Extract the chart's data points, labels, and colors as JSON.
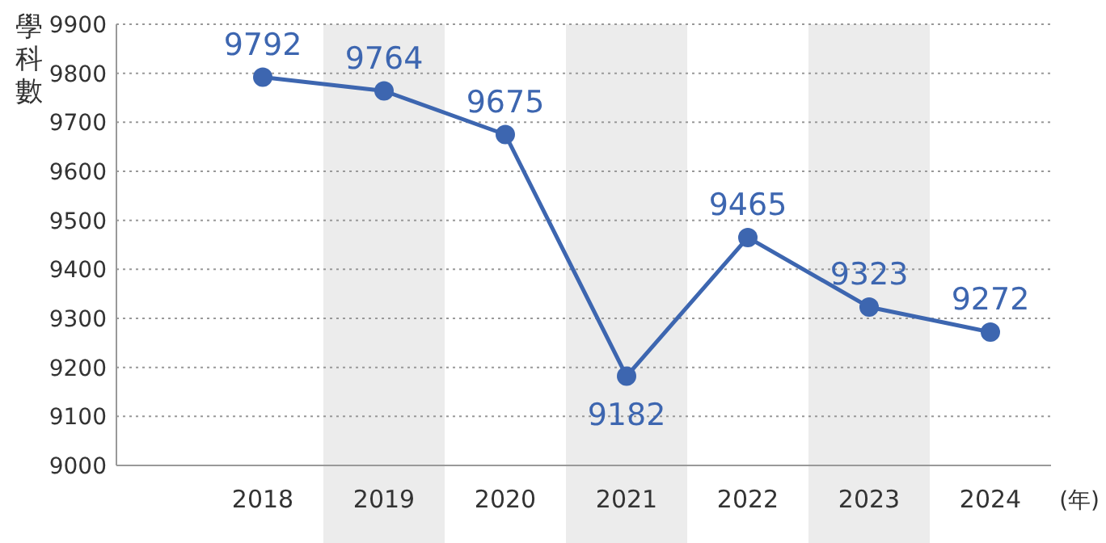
{
  "chart_data": {
    "type": "line",
    "ylabel": "學科數",
    "xlabel": "(年)",
    "categories": [
      "2018",
      "2019",
      "2020",
      "2021",
      "2022",
      "2023",
      "2024"
    ],
    "series": [
      {
        "color": "#3d66b0",
        "values": [
          9792,
          9764,
          9675,
          9182,
          9465,
          9323,
          9272
        ]
      }
    ],
    "ylim": [
      9000,
      9900
    ],
    "yticks": [
      9000,
      9100,
      9200,
      9300,
      9400,
      9500,
      9600,
      9700,
      9800,
      9900
    ],
    "grid": "y",
    "marker": "circle",
    "line_style": "solid",
    "data_labels": true,
    "bands": [
      {
        "axis": "x",
        "from": "2019",
        "to": "2019",
        "color": "#ececec"
      },
      {
        "axis": "x",
        "from": "2021",
        "to": "2021",
        "color": "#ececec"
      },
      {
        "axis": "x",
        "from": "2023",
        "to": "2023",
        "color": "#ececec"
      }
    ]
  }
}
